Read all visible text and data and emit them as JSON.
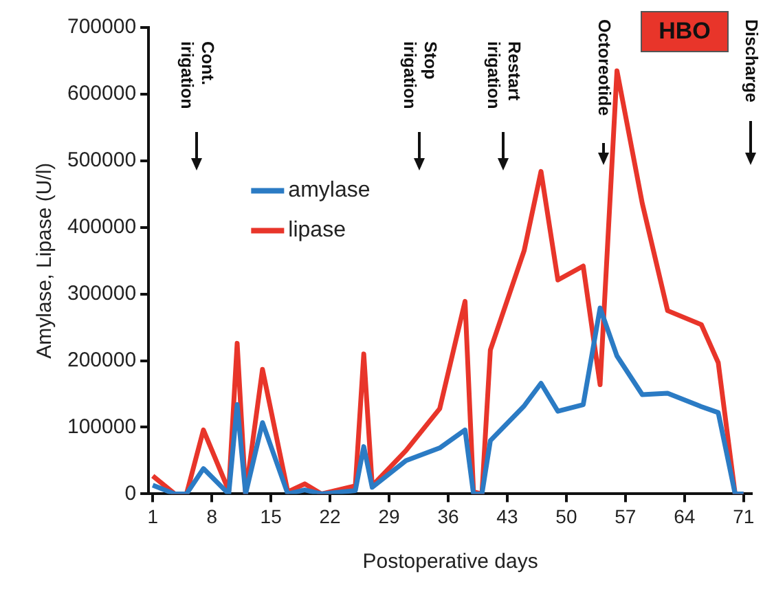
{
  "chart_data": {
    "type": "line",
    "xlabel": "Postoperative days",
    "ylabel": "Amylase, Lipase (U/l)",
    "xlim": [
      0.5,
      72
    ],
    "xticks": [
      1,
      8,
      15,
      22,
      29,
      36,
      43,
      50,
      57,
      64,
      71
    ],
    "ylim": [
      0,
      700000
    ],
    "yticks": [
      0,
      100000,
      200000,
      300000,
      400000,
      500000,
      600000,
      700000
    ],
    "grid": false,
    "legend": "top left",
    "marker": "none",
    "line_style": "solid",
    "series": [
      {
        "name": "amylase",
        "color": "#2b7bc4",
        "x": [
          1,
          3.6,
          5,
          7,
          10,
          11,
          12,
          14,
          17,
          19,
          21,
          25,
          26,
          27,
          31,
          35,
          38,
          39,
          40,
          41,
          45,
          47,
          49,
          52,
          54,
          56,
          59,
          62,
          66,
          68,
          70,
          71
        ],
        "values": [
          13000,
          0,
          0,
          38000,
          0,
          134000,
          0,
          107000,
          0,
          6000,
          0,
          5000,
          71000,
          10000,
          50000,
          69000,
          96000,
          0,
          0,
          80000,
          132000,
          166000,
          124000,
          134000,
          279000,
          207000,
          149000,
          151000,
          131000,
          122000,
          0,
          0
        ]
      },
      {
        "name": "lipase",
        "color": "#e8352a",
        "x": [
          1,
          3.6,
          5,
          7,
          10,
          11,
          12,
          14,
          17,
          19,
          21,
          25,
          26,
          27,
          31,
          35,
          38,
          39,
          40,
          41,
          45,
          47,
          49,
          52,
          54,
          56,
          59,
          62,
          66,
          68,
          70,
          71
        ],
        "values": [
          27000,
          0,
          0,
          96000,
          5000,
          226000,
          0,
          187000,
          3000,
          15000,
          0,
          12000,
          210000,
          12000,
          65000,
          128000,
          289000,
          3000,
          0,
          216000,
          365000,
          484000,
          321000,
          342000,
          164000,
          635000,
          436000,
          275000,
          254000,
          197000,
          0,
          0
        ]
      }
    ],
    "annotations": [
      "Cont. irigation",
      "Stop irigation",
      "Restart irigation",
      "Octoreotide",
      "Discharge",
      "HBO"
    ]
  }
}
